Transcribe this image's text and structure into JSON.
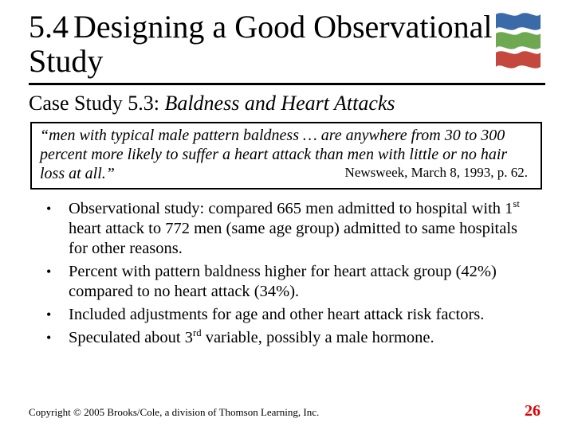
{
  "colors": {
    "background": "#ffffff",
    "text": "#000000",
    "accent_red": "#e00000",
    "deco_a": "#3a6aa8",
    "deco_b": "#6ea850",
    "deco_c": "#c4483e"
  },
  "title": {
    "section_number": "5.4",
    "text": "Designing a Good Observational Study"
  },
  "subtitle": {
    "lead": "Case Study 5.3:",
    "detail": "Baldness and Heart Attacks"
  },
  "quote": {
    "body_part1": "“men with typical male pattern baldness … are anywhere from 30 to 300 percent more likely to suffer a heart attack than men with little or no hair ",
    "tail": "loss at all.”",
    "citation": "Newsweek, March 8, 1993, p. 62."
  },
  "bullets": [
    {
      "pre": "Observational study: compared 665 men admitted to hospital with 1",
      "sup": "st",
      "post": " heart attack to 772 men (same age group) admitted to same hospitals for other reasons."
    },
    {
      "pre": "Percent with pattern baldness higher for heart attack group (42%) compared to no heart attack (34%).",
      "sup": "",
      "post": ""
    },
    {
      "pre": "Included adjustments for age and other heart attack risk factors.",
      "sup": "",
      "post": ""
    },
    {
      "pre": "Speculated about 3",
      "sup": "rd",
      "post": " variable, possibly a male hormone."
    }
  ],
  "footer": "Copyright © 2005 Brooks/Cole, a division of Thomson Learning, Inc.",
  "page_number": "26",
  "decor": {
    "width": 62,
    "height": 70
  }
}
